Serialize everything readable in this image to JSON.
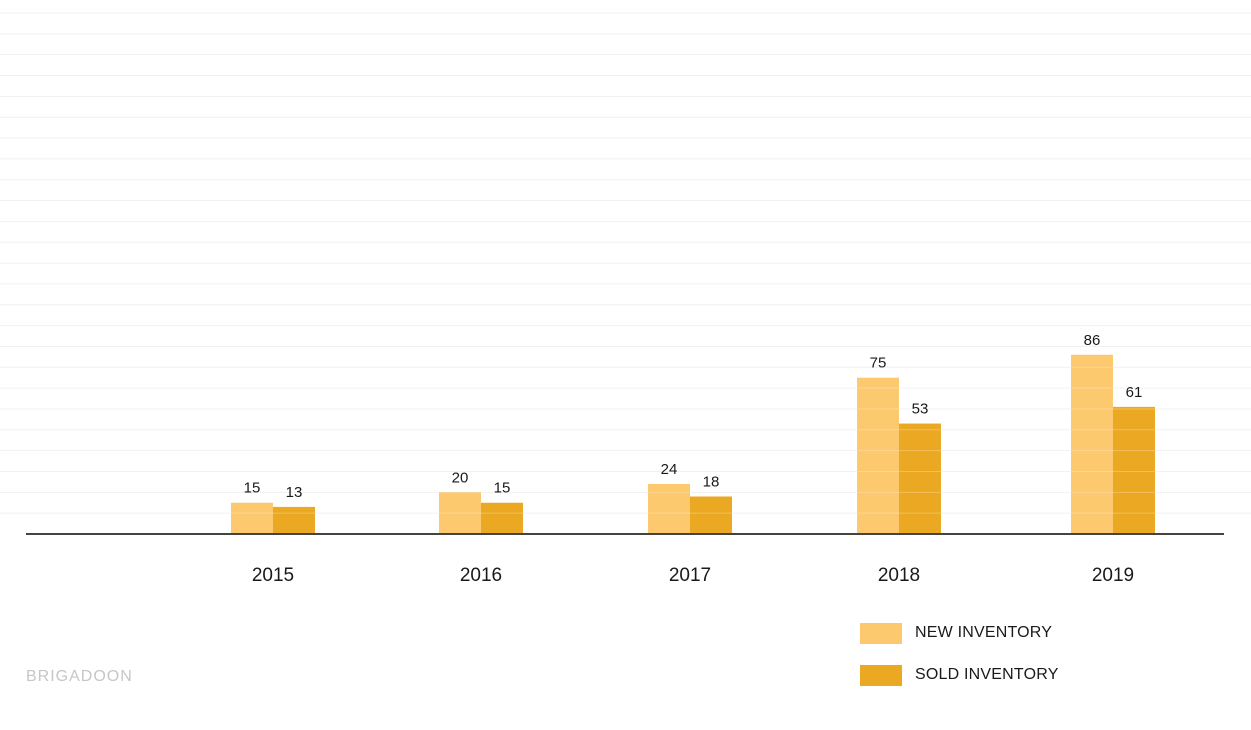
{
  "chart_data": {
    "type": "bar",
    "categories": [
      "2015",
      "2016",
      "2017",
      "2018",
      "2019"
    ],
    "series": [
      {
        "name": "NEW INVENTORY",
        "values": [
          15,
          20,
          24,
          75,
          86
        ],
        "color": "#fdc96f"
      },
      {
        "name": "SOLD INVENTORY",
        "values": [
          13,
          15,
          18,
          53,
          61
        ],
        "color": "#eba923"
      }
    ],
    "ylim": [
      0,
      250
    ],
    "grid": true,
    "legend_position": "bottom-right",
    "axis_color": "#444444"
  },
  "legend": {
    "new_label": "NEW INVENTORY",
    "sold_label": "SOLD INVENTORY"
  },
  "watermark": "BRIGADOON"
}
